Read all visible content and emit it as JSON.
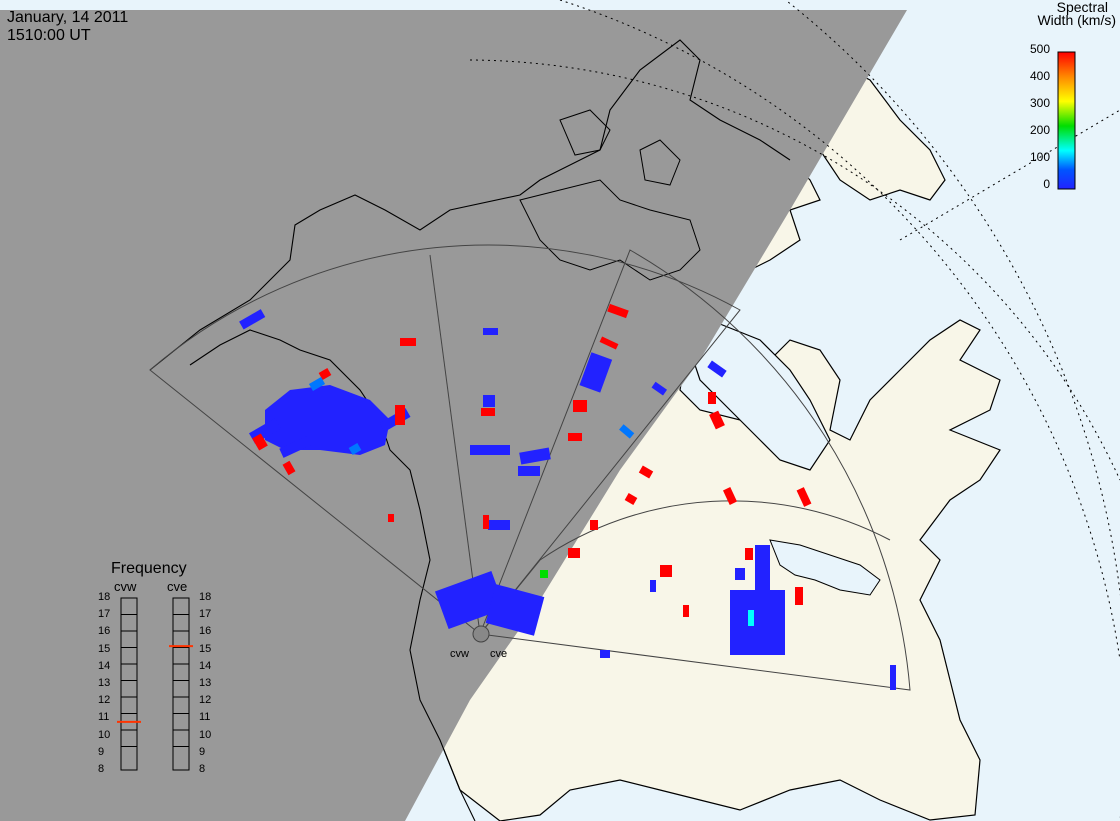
{
  "header": {
    "date": "January, 14 2011",
    "time": "1510:00 UT"
  },
  "colorbar": {
    "title_line1": "Spectral",
    "title_line2": "Width (km/s)",
    "ticks": [
      "500",
      "400",
      "300",
      "200",
      "100",
      "0"
    ],
    "range": [
      0,
      500
    ],
    "colors": [
      "#ff0000",
      "#ff8800",
      "#ffff00",
      "#00dd00",
      "#00ffff",
      "#0055ff",
      "#2222ff"
    ]
  },
  "frequency_panel": {
    "title": "Frequency",
    "radars": [
      {
        "name": "cvw",
        "value": 10.8
      },
      {
        "name": "cve",
        "value": 15.2
      }
    ],
    "ticks": [
      "18",
      "17",
      "16",
      "15",
      "14",
      "13",
      "12",
      "11",
      "10",
      "9",
      "8"
    ],
    "range": [
      8,
      18
    ],
    "marker_color": "#ff3300"
  },
  "radar_labels": {
    "west": "cvw",
    "east": "cve"
  },
  "map": {
    "night_color": "#999999",
    "land_color": "#f8f6e8",
    "ocean_color": "#e8f4fb",
    "coast_color": "#000000",
    "fov_color": "#444444"
  }
}
